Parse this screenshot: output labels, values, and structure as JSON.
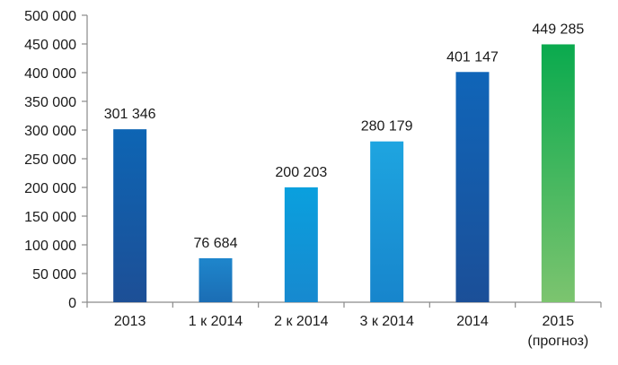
{
  "chart_data": {
    "type": "bar",
    "title": "",
    "xlabel": "",
    "ylabel": "",
    "ylim": [
      0,
      500000
    ],
    "y_ticks": [
      0,
      50000,
      100000,
      150000,
      200000,
      250000,
      300000,
      350000,
      400000,
      450000,
      500000
    ],
    "y_tick_labels": [
      "0",
      "50 000",
      "100 000",
      "150 000",
      "200 000",
      "250 000",
      "300 000",
      "350 000",
      "400 000",
      "450 000",
      "500 000"
    ],
    "grid": false,
    "legend": "none",
    "categories": [
      [
        "2013"
      ],
      [
        "1 к 2014"
      ],
      [
        "2 к 2014"
      ],
      [
        "3 к 2014"
      ],
      [
        "2014"
      ],
      [
        "2015",
        "(прогноз)"
      ]
    ],
    "values": [
      301346,
      76684,
      200203,
      280179,
      401147,
      449285
    ],
    "value_labels": [
      "301 346",
      "76 684",
      "200 203",
      "280 179",
      "401 147",
      "449 285"
    ],
    "bar_colors": [
      [
        "#0d65b4",
        "#1d4f96"
      ],
      [
        "#1e86cc",
        "#1b6db4"
      ],
      [
        "#0aa0de",
        "#1789cf"
      ],
      [
        "#1ea5e0",
        "#1785cc"
      ],
      [
        "#1065b8",
        "#1b4f98"
      ],
      [
        "#0aaa4e",
        "#7cc46f"
      ]
    ],
    "axis_color": "#8a8a8a"
  }
}
